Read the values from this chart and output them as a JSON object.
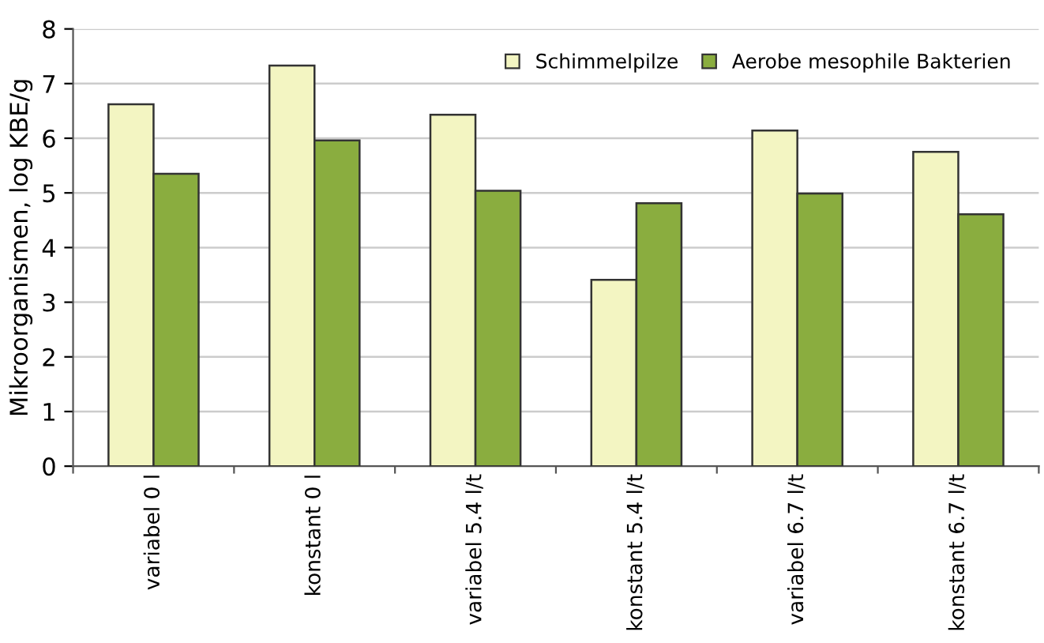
{
  "chart_data": {
    "type": "bar",
    "ylabel": "Mikroorganismen, log KBE/g",
    "categories": [
      "variabel 0 l",
      "konstant 0 l",
      "variabel 5.4 l/t",
      "konstant 5.4 l/t",
      "variabel 6.7 l/t",
      "konstant 6.7 l/t"
    ],
    "series": [
      {
        "name": "Schimmelpilze",
        "color": "#f3f5c2",
        "values": [
          6.62,
          7.33,
          6.43,
          3.41,
          6.14,
          5.75
        ]
      },
      {
        "name": "Aerobe mesophile Bakterien",
        "color": "#8aad3f",
        "values": [
          5.35,
          5.96,
          5.04,
          4.81,
          4.99,
          4.61
        ]
      }
    ],
    "ylim": [
      0,
      8
    ],
    "yticks": [
      0,
      1,
      2,
      3,
      4,
      5,
      6,
      7,
      8
    ],
    "grid": "y",
    "legend": "top right"
  }
}
